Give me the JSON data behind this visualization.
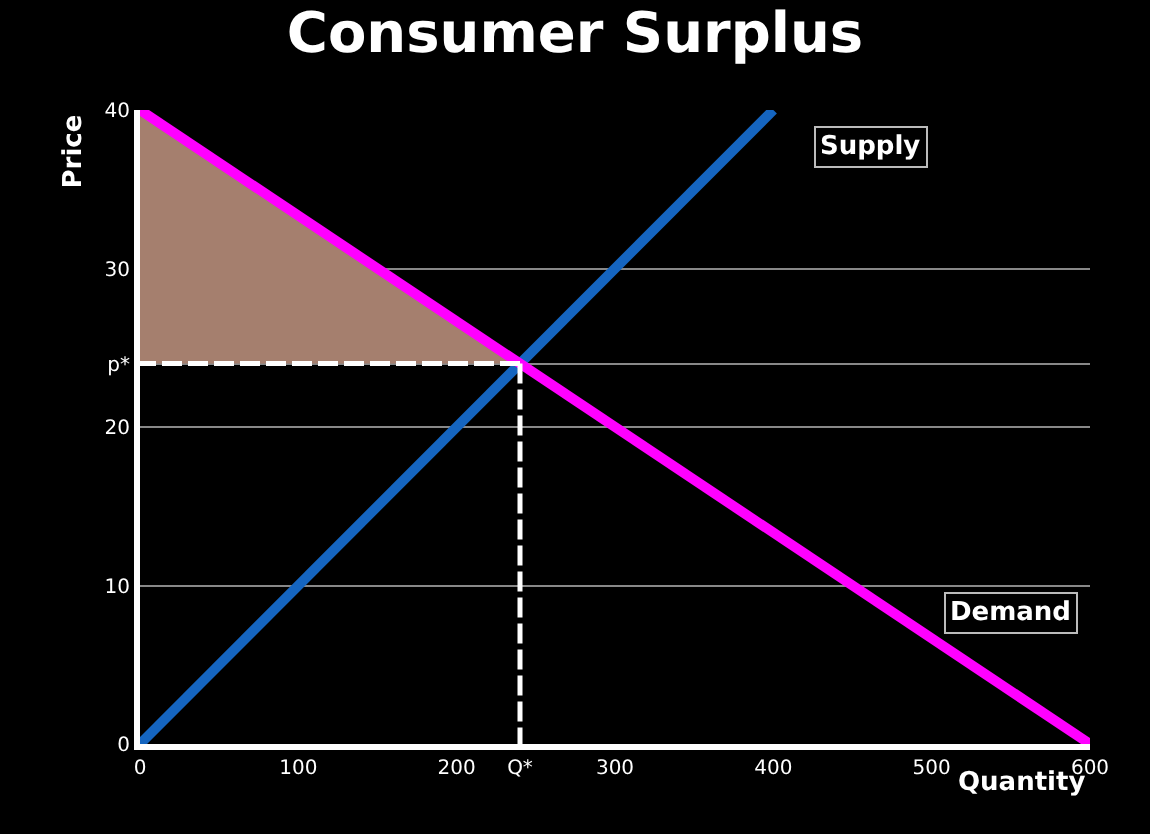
{
  "chart_data": {
    "type": "line",
    "title": "Consumer Surplus",
    "xlabel": "Quantity",
    "ylabel": "Price",
    "xlim": [
      0,
      600
    ],
    "ylim": [
      0,
      40
    ],
    "xticks": [
      0,
      100,
      200,
      {
        "value": 240,
        "label": "Q*"
      },
      300,
      400,
      500,
      600
    ],
    "yticks": [
      0,
      10,
      20,
      {
        "value": 24,
        "label": "p*"
      },
      30,
      40
    ],
    "grid": "y",
    "legend": false,
    "series": [
      {
        "color": "#ffffff",
        "x": [
          240,
          0
        ],
        "values": [
          24,
          24
        ],
        "line_style": "dashed"
      },
      {
        "type": "area",
        "color": "#a57f6e",
        "x": [
          0,
          240
        ],
        "values": [
          40,
          24
        ]
      },
      {
        "color": "#ffffff",
        "x": [
          240,
          240
        ],
        "values": [
          24,
          0
        ],
        "line_style": "dashed"
      },
      {
        "name": "Supply",
        "color": "#1565c0",
        "x": [
          0,
          400
        ],
        "values": [
          0,
          40
        ]
      },
      {
        "name": "Demand",
        "color": "#ff00ff",
        "x": [
          0,
          600
        ],
        "values": [
          40,
          0
        ]
      }
    ]
  }
}
